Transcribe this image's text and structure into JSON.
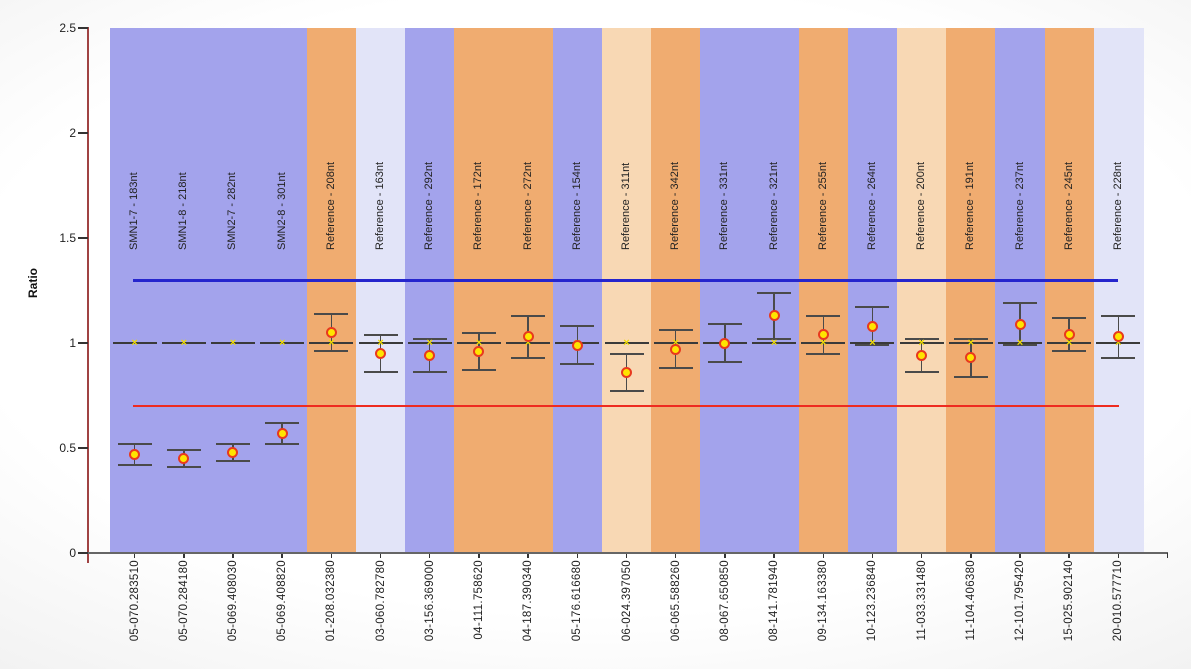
{
  "chart_data": {
    "type": "scatter",
    "title": "",
    "xlabel": "",
    "ylabel": "Ratio",
    "ylim": [
      0,
      2.5
    ],
    "yticks": [
      "0",
      "0.5",
      "1",
      "1.5",
      "2",
      "2.5"
    ],
    "grid": false,
    "legend": null,
    "upper_limit_line_value": 1.3,
    "lower_limit_line_value": 0.7,
    "expected_value": 1.0,
    "colors": {
      "band_blue": "#a3a3ec",
      "band_orange": "#f0ac70",
      "band_cream": "#f8d8b4",
      "band_lavender": "#e2e4f8",
      "upper_limit_line": "#2525cd",
      "lower_limit_line": "#ee2b20",
      "marker_fill": "#ffe400",
      "marker_stroke": "#e8391e",
      "expected_marker": "#f0dc00",
      "errorbar": "#4a4a4a",
      "reference_line": "#3a3a3a",
      "y_axis_line": "#a04343",
      "x_axis_line": "#666666",
      "tick_color": "#333333",
      "text": "#222222"
    },
    "points": [
      {
        "x_label": "05-070.283510",
        "band_label": "SMN1-7 - 183nt",
        "band": "band_blue",
        "value": 0.47,
        "error": 0.05
      },
      {
        "x_label": "05-070.284180",
        "band_label": "SMN1-8 - 218nt",
        "band": "band_blue",
        "value": 0.45,
        "error": 0.04
      },
      {
        "x_label": "05-069.408030",
        "band_label": "SMN2-7 - 282nt",
        "band": "band_blue",
        "value": 0.48,
        "error": 0.04
      },
      {
        "x_label": "05-069.408820",
        "band_label": "SMN2-8 - 301nt",
        "band": "band_blue",
        "value": 0.57,
        "error": 0.05
      },
      {
        "x_label": "01-208.032380",
        "band_label": "Reference - 208nt",
        "band": "band_orange",
        "value": 1.05,
        "error": 0.09
      },
      {
        "x_label": "03-060.782780",
        "band_label": "Reference - 163nt",
        "band": "band_lavender",
        "value": 0.95,
        "error": 0.09
      },
      {
        "x_label": "03-156.369000",
        "band_label": "Reference - 292nt",
        "band": "band_blue",
        "value": 0.94,
        "error": 0.08
      },
      {
        "x_label": "04-111.758620",
        "band_label": "Reference - 172nt",
        "band": "band_orange",
        "value": 0.96,
        "error": 0.09
      },
      {
        "x_label": "04-187.390340",
        "band_label": "Reference - 272nt",
        "band": "band_orange",
        "value": 1.03,
        "error": 0.1
      },
      {
        "x_label": "05-176.616680",
        "band_label": "Reference - 154nt",
        "band": "band_blue",
        "value": 0.99,
        "error": 0.09
      },
      {
        "x_label": "06-024.397050",
        "band_label": "Reference - 311nt",
        "band": "band_cream",
        "value": 0.86,
        "error": 0.09
      },
      {
        "x_label": "06-065.588260",
        "band_label": "Reference - 342nt",
        "band": "band_orange",
        "value": 0.97,
        "error": 0.09
      },
      {
        "x_label": "08-067.650850",
        "band_label": "Reference - 331nt",
        "band": "band_blue",
        "value": 1.0,
        "error": 0.09
      },
      {
        "x_label": "08-141.781940",
        "band_label": "Reference - 321nt",
        "band": "band_blue",
        "value": 1.13,
        "error": 0.11
      },
      {
        "x_label": "09-134.163380",
        "band_label": "Reference - 255nt",
        "band": "band_orange",
        "value": 1.04,
        "error": 0.09
      },
      {
        "x_label": "10-123.236840",
        "band_label": "Reference - 264nt",
        "band": "band_blue",
        "value": 1.08,
        "error": 0.09
      },
      {
        "x_label": "11-033.331480",
        "band_label": "Reference - 200nt",
        "band": "band_cream",
        "value": 0.94,
        "error": 0.08
      },
      {
        "x_label": "11-104.406380",
        "band_label": "Reference - 191nt",
        "band": "band_orange",
        "value": 0.93,
        "error": 0.09
      },
      {
        "x_label": "12-101.795420",
        "band_label": "Reference - 237nt",
        "band": "band_blue",
        "value": 1.09,
        "error": 0.1
      },
      {
        "x_label": "15-025.902140",
        "band_label": "Reference - 245nt",
        "band": "band_orange",
        "value": 1.04,
        "error": 0.08
      },
      {
        "x_label": "20-010.577710",
        "band_label": "Reference - 228nt",
        "band": "band_lavender",
        "value": 1.03,
        "error": 0.1
      }
    ]
  }
}
